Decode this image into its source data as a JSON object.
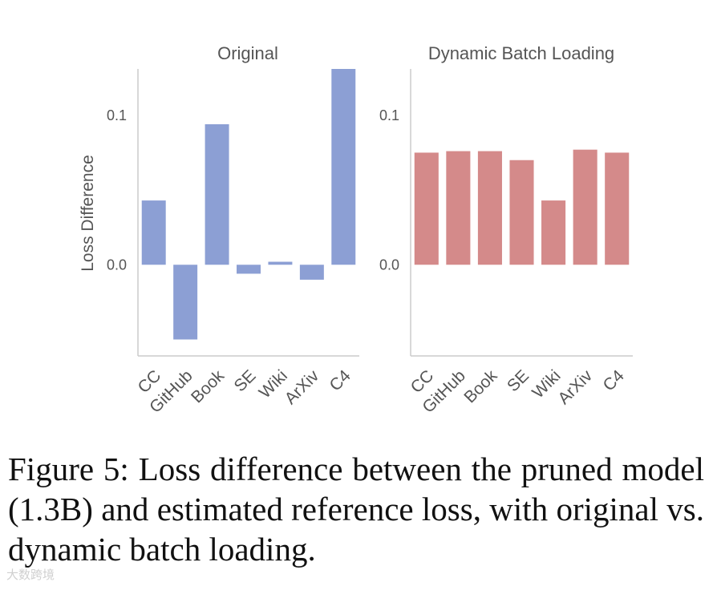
{
  "chart_data": [
    {
      "type": "bar",
      "title": "Original",
      "ylabel": "Loss Difference",
      "categories": [
        "CC",
        "GitHub",
        "Book",
        "SE",
        "Wiki",
        "ArXiv",
        "C4"
      ],
      "values": [
        0.043,
        -0.05,
        0.094,
        -0.006,
        0.002,
        -0.01,
        0.131
      ],
      "ylim": [
        -0.061,
        0.131
      ],
      "yticks": [
        {
          "v": 0.0,
          "label": "0.0"
        },
        {
          "v": 0.1,
          "label": "0.1"
        }
      ],
      "color": "#8c9fd4",
      "grid": false
    },
    {
      "type": "bar",
      "title": "Dynamic Batch Loading",
      "ylabel": "",
      "categories": [
        "CC",
        "GitHub",
        "Book",
        "SE",
        "Wiki",
        "ArXiv",
        "C4"
      ],
      "values": [
        0.075,
        0.076,
        0.076,
        0.07,
        0.043,
        0.077,
        0.075
      ],
      "ylim": [
        -0.061,
        0.131
      ],
      "yticks": [
        {
          "v": 0.0,
          "label": "0.0"
        },
        {
          "v": 0.1,
          "label": "0.1"
        }
      ],
      "color": "#d48a8a",
      "grid": false
    }
  ],
  "caption": "Figure 5: Loss difference between the pruned model (1.3B) and estimated reference loss, with original vs. dynamic batch loading.",
  "watermark": "大数跨境"
}
